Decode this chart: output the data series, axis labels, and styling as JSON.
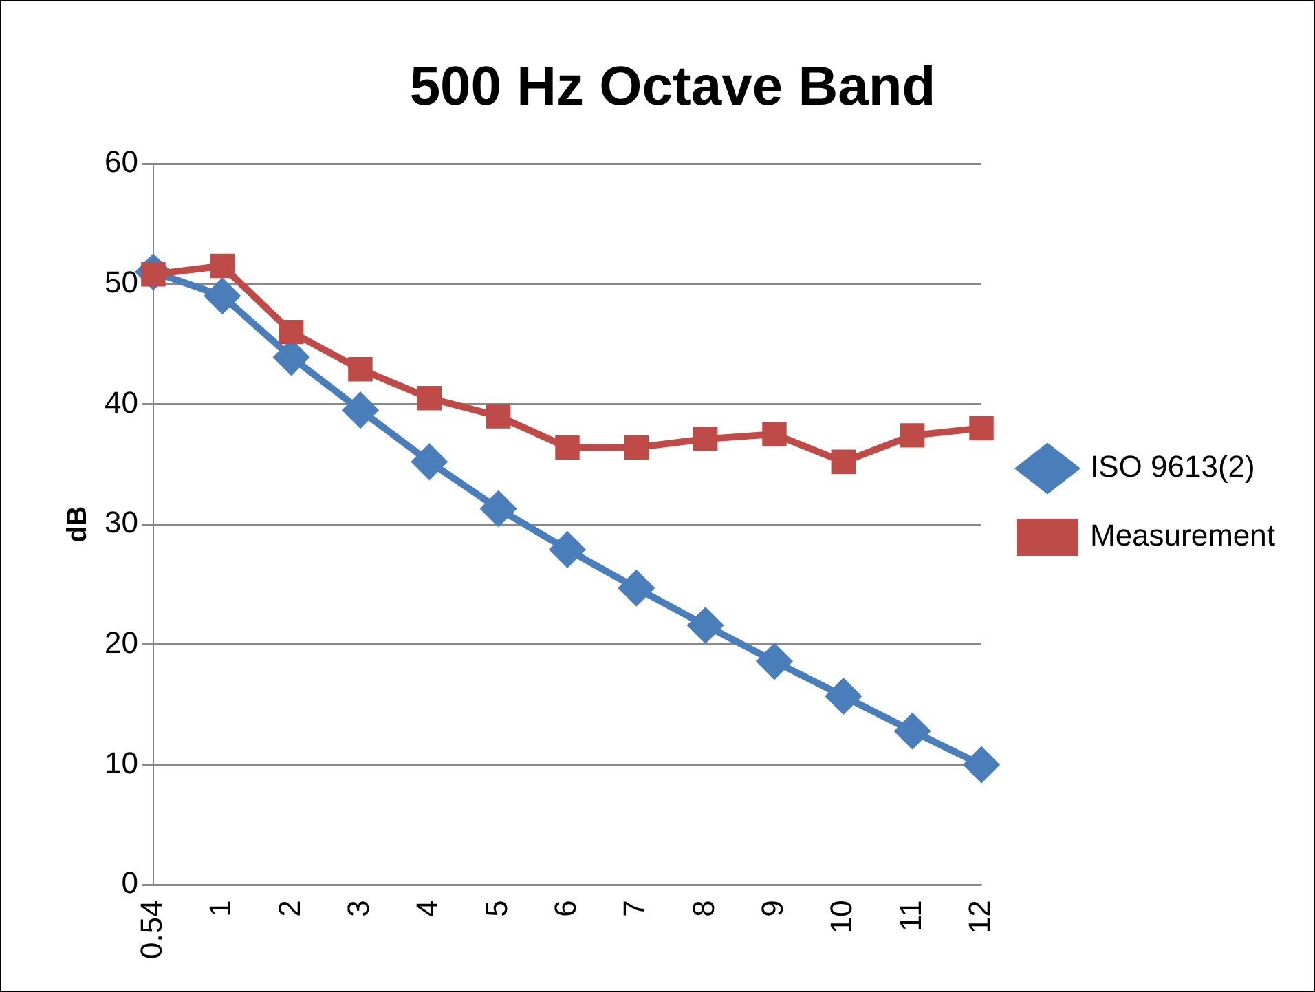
{
  "chart_data": {
    "type": "line",
    "title": "500 Hz Octave Band",
    "ylabel": "dB",
    "categories": [
      "0.54",
      "1",
      "2",
      "3",
      "4",
      "5",
      "6",
      "7",
      "8",
      "9",
      "10",
      "11",
      "12"
    ],
    "series": [
      {
        "name": "ISO 9613(2)",
        "color": "#4a7ebb",
        "marker": "diamond",
        "values": [
          51.0,
          49.0,
          43.9,
          39.5,
          35.2,
          31.3,
          27.9,
          24.7,
          21.6,
          18.6,
          15.7,
          12.8,
          10.0
        ]
      },
      {
        "name": "Measurement",
        "color": "#be4b48",
        "marker": "square",
        "values": [
          50.8,
          51.5,
          46.0,
          42.9,
          40.5,
          39.0,
          36.4,
          36.4,
          37.1,
          37.5,
          35.2,
          37.4,
          38.0
        ]
      }
    ],
    "ylim": [
      0,
      60
    ],
    "yticks": [
      0,
      10,
      20,
      30,
      40,
      50,
      60
    ],
    "grid": "y",
    "legend": "right",
    "line_style": "solid"
  }
}
